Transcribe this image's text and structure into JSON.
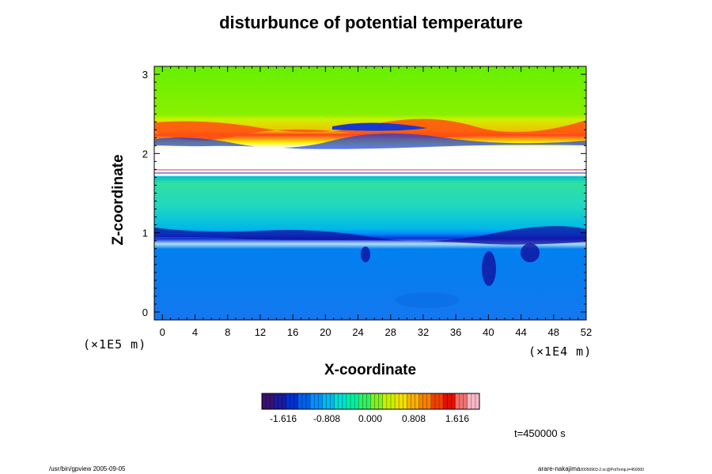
{
  "chart_data": {
    "type": "heatmap",
    "title": "disturbunce of potential temperature",
    "xlabel": "X-coordinate",
    "ylabel": "Z-coordinate",
    "x_unit": "(×1E4 m)",
    "z_unit": "(×1E5 m)",
    "xlim": [
      -1,
      52
    ],
    "ylim": [
      -0.1,
      3.1
    ],
    "x_ticks": [
      0,
      4,
      8,
      12,
      16,
      20,
      24,
      28,
      32,
      36,
      40,
      44,
      48,
      52
    ],
    "y_ticks": [
      0,
      1,
      2,
      3
    ],
    "layers": [
      {
        "z_range": [
          -0.1,
          0.9
        ],
        "level": -0.8
      },
      {
        "z_range": [
          0.9,
          1.05
        ],
        "level": -1.0
      },
      {
        "z_range": [
          1.05,
          1.4
        ],
        "level": -0.2
      },
      {
        "z_range": [
          1.4,
          1.72
        ],
        "level": 0.1
      },
      {
        "z_range": [
          1.72,
          2.2
        ],
        "level": "undefined"
      },
      {
        "z_range": [
          2.2,
          2.45
        ],
        "level": 1.2
      },
      {
        "z_range": [
          2.45,
          3.1
        ],
        "level": 0.5
      }
    ],
    "colorbar": {
      "tick_labels": [
        "-1.616",
        "-0.808",
        "0.000",
        "0.808",
        "1.616"
      ],
      "colors": [
        "#3a1070",
        "#1a1aa0",
        "#0030d0",
        "#0060e8",
        "#0090ff",
        "#00b8f0",
        "#00e0d0",
        "#00f0a0",
        "#30f060",
        "#80f020",
        "#c8f000",
        "#f0e000",
        "#f8b000",
        "#f88000",
        "#f04000",
        "#e01000",
        "#f07070",
        "#f8b8c8"
      ]
    },
    "time_label": "t=450000 s"
  },
  "footer": {
    "left": "/usr/bin/gpview 2005-09-05",
    "right_main": "arare-nakajima",
    "right_small": "20050903-2.nc@PotTemp,t=450000"
  }
}
